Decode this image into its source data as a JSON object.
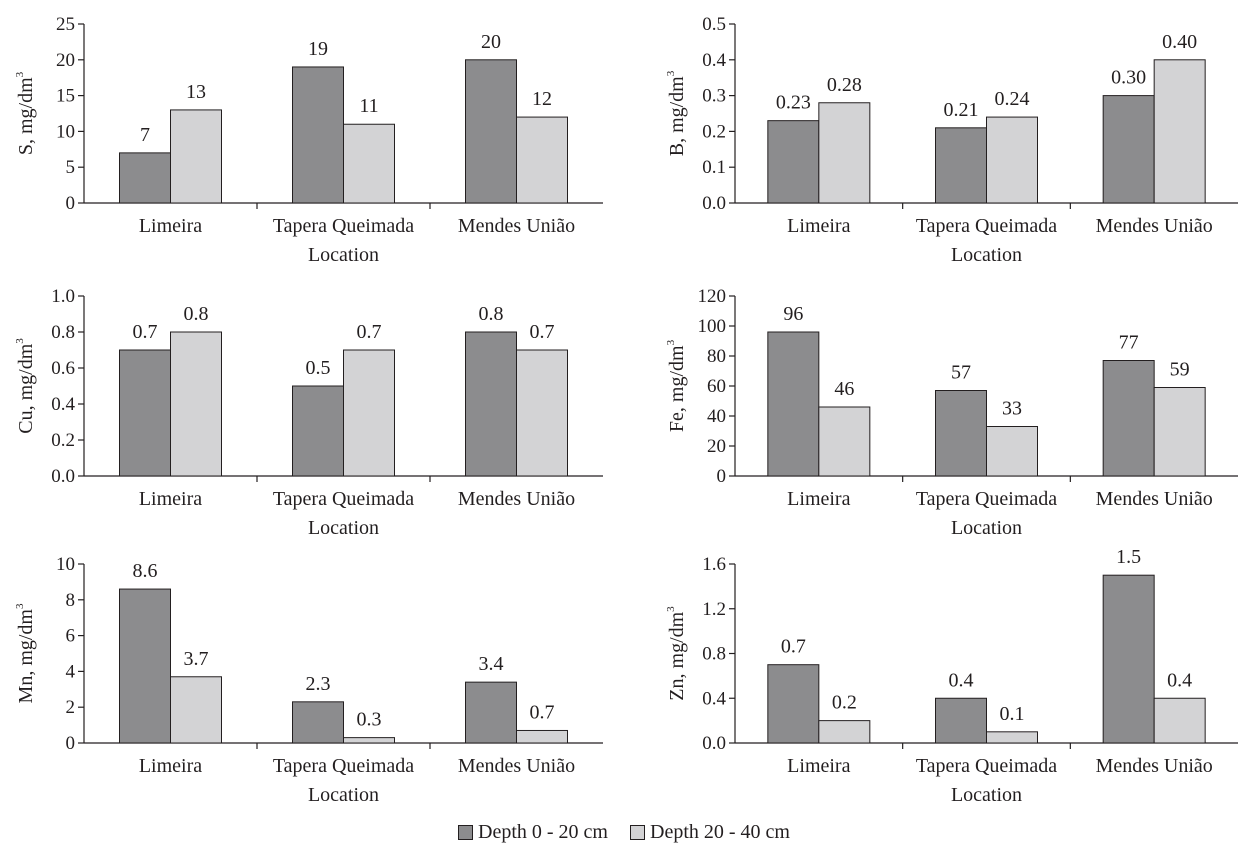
{
  "colors": {
    "depth_0_20": "#8c8c8e",
    "depth_20_40": "#d3d3d5",
    "axis": "#231f20"
  },
  "legend": {
    "items": [
      {
        "label": "Depth 0 - 20 cm",
        "color": "#8c8c8e"
      },
      {
        "label": "Depth 20 - 40 cm",
        "color": "#d3d3d5"
      }
    ]
  },
  "chart_data": [
    {
      "type": "bar",
      "grid": false,
      "categories": [
        "Limeira",
        "Tapera Queimada",
        "Mendes União"
      ],
      "series": [
        {
          "name": "Depth 0 - 20 cm",
          "values": [
            7,
            19,
            20
          ],
          "labels": [
            "7",
            "19",
            "20"
          ]
        },
        {
          "name": "Depth 20 - 40 cm",
          "values": [
            13,
            11,
            12
          ],
          "labels": [
            "13",
            "11",
            "12"
          ]
        }
      ],
      "ylabel": "S, mg/dm",
      "ylabel_sup": "3",
      "xlabel": "Location",
      "ylim": [
        0,
        25
      ],
      "yticks": [
        "0",
        "5",
        "10",
        "15",
        "20",
        "25"
      ]
    },
    {
      "type": "bar",
      "grid": false,
      "categories": [
        "Limeira",
        "Tapera Queimada",
        "Mendes União"
      ],
      "series": [
        {
          "name": "Depth 0 - 20 cm",
          "values": [
            0.23,
            0.21,
            0.3
          ],
          "labels": [
            "0.23",
            "0.21",
            "0.30"
          ]
        },
        {
          "name": "Depth 20 - 40 cm",
          "values": [
            0.28,
            0.24,
            0.4
          ],
          "labels": [
            "0.28",
            "0.24",
            "0.40"
          ]
        }
      ],
      "ylabel": "B, mg/dm",
      "ylabel_sup": "3",
      "xlabel": "Location",
      "ylim": [
        0,
        0.5
      ],
      "yticks": [
        "0.0",
        "0.1",
        "0.2",
        "0.3",
        "0.4",
        "0.5"
      ]
    },
    {
      "type": "bar",
      "grid": false,
      "categories": [
        "Limeira",
        "Tapera Queimada",
        "Mendes União"
      ],
      "series": [
        {
          "name": "Depth 0 - 20 cm",
          "values": [
            0.7,
            0.5,
            0.8
          ],
          "labels": [
            "0.7",
            "0.5",
            "0.8"
          ]
        },
        {
          "name": "Depth 20 - 40 cm",
          "values": [
            0.8,
            0.7,
            0.7
          ],
          "labels": [
            "0.8",
            "0.7",
            "0.7"
          ]
        }
      ],
      "ylabel": "Cu, mg/dm",
      "ylabel_sup": "3",
      "xlabel": "Location",
      "ylim": [
        0,
        1.0
      ],
      "yticks": [
        "0.0",
        "0.2",
        "0.4",
        "0.6",
        "0.8",
        "1.0"
      ]
    },
    {
      "type": "bar",
      "grid": false,
      "categories": [
        "Limeira",
        "Tapera Queimada",
        "Mendes União"
      ],
      "series": [
        {
          "name": "Depth 0 - 20 cm",
          "values": [
            96,
            57,
            77
          ],
          "labels": [
            "96",
            "57",
            "77"
          ]
        },
        {
          "name": "Depth 20 - 40 cm",
          "values": [
            46,
            33,
            59
          ],
          "labels": [
            "46",
            "33",
            "59"
          ]
        }
      ],
      "ylabel": "Fe, mg/dm",
      "ylabel_sup": "3",
      "xlabel": "Location",
      "ylim": [
        0,
        120
      ],
      "yticks": [
        "0",
        "20",
        "40",
        "60",
        "80",
        "100",
        "120"
      ]
    },
    {
      "type": "bar",
      "grid": false,
      "categories": [
        "Limeira",
        "Tapera Queimada",
        "Mendes União"
      ],
      "series": [
        {
          "name": "Depth 0 - 20 cm",
          "values": [
            8.6,
            2.3,
            3.4
          ],
          "labels": [
            "8.6",
            "2.3",
            "3.4"
          ]
        },
        {
          "name": "Depth 20 - 40 cm",
          "values": [
            3.7,
            0.3,
            0.7
          ],
          "labels": [
            "3.7",
            "0.3",
            "0.7"
          ]
        }
      ],
      "ylabel": "Mn, mg/dm",
      "ylabel_sup": "3",
      "xlabel": "Location",
      "ylim": [
        0,
        10
      ],
      "yticks": [
        "0",
        "2",
        "4",
        "6",
        "8",
        "10"
      ]
    },
    {
      "type": "bar",
      "grid": false,
      "categories": [
        "Limeira",
        "Tapera Queimada",
        "Mendes União"
      ],
      "series": [
        {
          "name": "Depth 0 - 20 cm",
          "values": [
            0.7,
            0.4,
            1.5
          ],
          "labels": [
            "0.7",
            "0.4",
            "1.5"
          ]
        },
        {
          "name": "Depth 20 - 40 cm",
          "values": [
            0.2,
            0.1,
            0.4
          ],
          "labels": [
            "0.2",
            "0.1",
            "0.4"
          ]
        }
      ],
      "ylabel": "Zn, mg/dm",
      "ylabel_sup": "3",
      "xlabel": "Location",
      "ylim": [
        0,
        1.6
      ],
      "yticks": [
        "0.0",
        "0.4",
        "0.8",
        "1.2",
        "1.6"
      ]
    }
  ]
}
